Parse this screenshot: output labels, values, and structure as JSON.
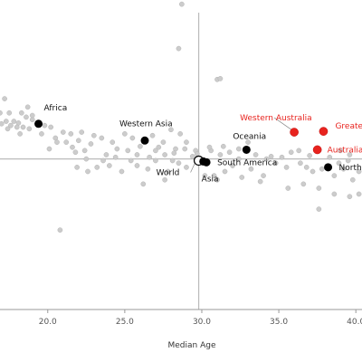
{
  "chart_data": {
    "type": "scatter",
    "xlabel": "Median Age",
    "ylabel": "",
    "title": "",
    "xlim": [
      16.9,
      40.4
    ],
    "ylim": [
      -1.8,
      1.9
    ],
    "x_ticks": [
      "20.0",
      "25.0",
      "30.0",
      "35.0",
      "40.0"
    ],
    "reference_lines": {
      "x": 29.8,
      "y": 0.0
    },
    "grid": false,
    "colors": {
      "background_points": "#cccccc",
      "region_points": "#000000",
      "highlight_points": "#e8231e",
      "reference_lines": "#bbbbbb"
    },
    "highlighted": [
      {
        "name": "Western Australia",
        "x": 36.0,
        "y": 0.32,
        "color": "#e8231e"
      },
      {
        "name": "Greater Perth",
        "x": 37.9,
        "y": 0.33,
        "color": "#e8231e"
      },
      {
        "name": "Australia",
        "x": 37.5,
        "y": 0.11,
        "color": "#e8231e"
      }
    ],
    "regions": [
      {
        "name": "Africa",
        "x": 19.4,
        "y": 0.42
      },
      {
        "name": "Western Asia",
        "x": 26.3,
        "y": 0.22
      },
      {
        "name": "Oceania",
        "x": 32.9,
        "y": 0.11
      },
      {
        "name": "South America",
        "x": 30.3,
        "y": -0.04
      },
      {
        "name": "World",
        "x": 29.8,
        "y": -0.02
      },
      {
        "name": "Asia",
        "x": 30.1,
        "y": -0.03
      },
      {
        "name": "North America",
        "x": 38.2,
        "y": -0.1
      }
    ],
    "background_series": [
      [
        28.5,
        1.32
      ],
      [
        28.7,
        1.85
      ],
      [
        31.0,
        0.95
      ],
      [
        31.2,
        0.96
      ],
      [
        17.2,
        0.72
      ],
      [
        16.9,
        0.55
      ],
      [
        17.5,
        0.55
      ],
      [
        18.3,
        0.55
      ],
      [
        18.6,
        0.5
      ],
      [
        19.0,
        0.47
      ],
      [
        17.8,
        0.45
      ],
      [
        18.1,
        0.43
      ],
      [
        17.3,
        0.45
      ],
      [
        17.6,
        0.4
      ],
      [
        18.0,
        0.38
      ],
      [
        18.4,
        0.38
      ],
      [
        18.8,
        0.36
      ],
      [
        19.8,
        0.4
      ],
      [
        20.2,
        0.38
      ],
      [
        21.0,
        0.32
      ],
      [
        21.5,
        0.3
      ],
      [
        22.2,
        0.32
      ],
      [
        23.0,
        0.28
      ],
      [
        20.5,
        0.25
      ],
      [
        21.2,
        0.2
      ],
      [
        22.0,
        0.22
      ],
      [
        22.8,
        0.18
      ],
      [
        23.5,
        0.25
      ],
      [
        24.2,
        0.2
      ],
      [
        25.0,
        0.3
      ],
      [
        25.5,
        0.25
      ],
      [
        26.8,
        0.28
      ],
      [
        27.5,
        0.2
      ],
      [
        28.0,
        0.35
      ],
      [
        28.3,
        0.12
      ],
      [
        28.6,
        0.3
      ],
      [
        29.0,
        0.2
      ],
      [
        20.1,
        0.12
      ],
      [
        21.8,
        0.08
      ],
      [
        22.5,
        0.0
      ],
      [
        23.8,
        0.05
      ],
      [
        24.5,
        0.12
      ],
      [
        25.2,
        0.1
      ],
      [
        25.8,
        0.05
      ],
      [
        26.0,
        0.15
      ],
      [
        27.0,
        0.1
      ],
      [
        27.6,
        0.05
      ],
      [
        28.2,
        0.07
      ],
      [
        28.9,
        0.12
      ],
      [
        29.4,
        0.03
      ],
      [
        29.6,
        0.1
      ],
      [
        30.6,
        0.1
      ],
      [
        31.2,
        0.05
      ],
      [
        31.8,
        0.08
      ],
      [
        32.4,
        0.0
      ],
      [
        33.5,
        0.05
      ],
      [
        34.2,
        0.0
      ],
      [
        34.8,
        -0.05
      ],
      [
        35.5,
        -0.1
      ],
      [
        36.4,
        -0.05
      ],
      [
        36.8,
        -0.1
      ],
      [
        37.2,
        -0.15
      ],
      [
        37.8,
        -0.12
      ],
      [
        38.6,
        -0.2
      ],
      [
        39.2,
        -0.12
      ],
      [
        39.8,
        -0.25
      ],
      [
        40.2,
        -0.15
      ],
      [
        39.5,
        -0.02
      ],
      [
        38.9,
        -0.05
      ],
      [
        34.0,
        -0.2
      ],
      [
        33.2,
        -0.12
      ],
      [
        32.0,
        -0.08
      ],
      [
        31.5,
        -0.15
      ],
      [
        30.8,
        -0.2
      ],
      [
        29.0,
        -0.1
      ],
      [
        28.5,
        -0.05
      ],
      [
        27.8,
        -0.15
      ],
      [
        27.0,
        -0.02
      ],
      [
        26.5,
        -0.12
      ],
      [
        25.8,
        -0.08
      ],
      [
        24.8,
        -0.15
      ],
      [
        24.0,
        -0.08
      ],
      [
        23.2,
        -0.1
      ],
      [
        22.6,
        -0.15
      ],
      [
        21.9,
        -0.1
      ],
      [
        26.2,
        -0.3
      ],
      [
        27.6,
        -0.25
      ],
      [
        35.6,
        -0.35
      ],
      [
        36.6,
        -0.3
      ],
      [
        37.6,
        -0.35
      ],
      [
        38.6,
        -0.42
      ],
      [
        39.6,
        -0.45
      ],
      [
        40.2,
        -0.42
      ],
      [
        35.8,
        0.08
      ],
      [
        36.3,
        0.1
      ],
      [
        37.0,
        0.04
      ],
      [
        38.3,
        0.02
      ],
      [
        39.0,
        0.1
      ],
      [
        39.6,
        0.05
      ],
      [
        30.2,
        -0.2
      ],
      [
        31.0,
        -0.25
      ],
      [
        32.6,
        -0.22
      ],
      [
        33.8,
        -0.27
      ],
      [
        37.6,
        -0.6
      ],
      [
        20.8,
        -0.85
      ],
      [
        34.5,
        0.03
      ],
      [
        35.2,
        0.02
      ],
      [
        33.0,
        0.2
      ],
      [
        32.4,
        0.12
      ],
      [
        31.4,
        0.15
      ],
      [
        30.5,
        0.14
      ],
      [
        29.7,
        0.06
      ],
      [
        28.1,
        -0.02
      ],
      [
        27.2,
        0.14
      ],
      [
        26.6,
        0.02
      ],
      [
        25.4,
        -0.02
      ],
      [
        24.4,
        0.02
      ],
      [
        23.6,
        -0.02
      ],
      [
        22.4,
        0.1
      ],
      [
        21.6,
        0.14
      ],
      [
        20.6,
        0.2
      ],
      [
        19.6,
        0.3
      ],
      [
        19.0,
        0.52
      ],
      [
        18.7,
        0.62
      ],
      [
        17.0,
        0.42
      ],
      [
        17.4,
        0.36
      ],
      [
        18.2,
        0.3
      ]
    ]
  }
}
